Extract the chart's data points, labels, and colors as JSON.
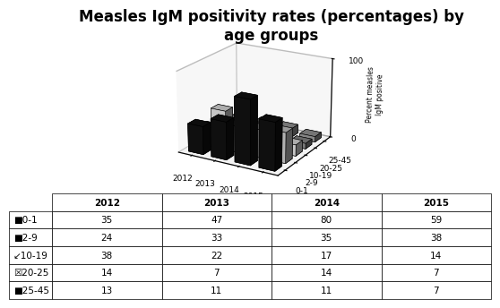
{
  "title": "Measles IgM positivity rates (percentages) by\nage groups",
  "years": [
    2012,
    2013,
    2014,
    2015
  ],
  "age_groups": [
    "0-1",
    "2-9",
    "10-19",
    "20-25",
    "25-45"
  ],
  "values": {
    "0-1": [
      35,
      47,
      80,
      59
    ],
    "2-9": [
      24,
      33,
      35,
      38
    ],
    "10-19": [
      38,
      22,
      17,
      14
    ],
    "20-25": [
      14,
      7,
      14,
      7
    ],
    "25-45": [
      13,
      11,
      11,
      7
    ]
  },
  "bar_colors": [
    "#111111",
    "#c8c8c8",
    "#e0e0e0",
    "#888888",
    "#999999"
  ],
  "ylabel": "Percent measles\nIgM positive",
  "zlim": [
    0,
    100
  ],
  "background_color": "#ffffff",
  "title_fontsize": 12,
  "table_row_symbols": [
    "■",
    "■",
    "↙",
    "☒",
    "■"
  ],
  "table_row_symbol_colors": [
    "#000000",
    "#aaaaaa",
    "#000000",
    "#000000",
    "#555555"
  ],
  "table_age_groups": [
    "0-1",
    "2-9",
    "10-19",
    "20-25",
    "25-45"
  ]
}
